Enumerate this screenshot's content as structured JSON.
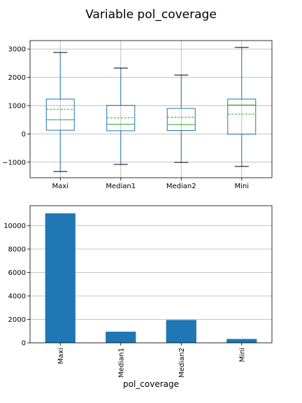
{
  "figure": {
    "title": "Variable pol_coverage"
  },
  "colors": {
    "box": "#1f77b4",
    "median": "#2ca02c",
    "mean": "#2ca02c",
    "bar": "#1f77b4",
    "grid": "#b0b0b0",
    "axis": "#000000"
  },
  "chart_data": [
    {
      "type": "box",
      "categories": [
        "Maxi",
        "Median1",
        "Median2",
        "Mini"
      ],
      "boxes": [
        {
          "name": "Maxi",
          "whisker_low": -1330,
          "q1": 130,
          "median": 500,
          "q3": 1230,
          "whisker_high": 2880,
          "mean": 870
        },
        {
          "name": "Median1",
          "whisker_low": -1080,
          "q1": 110,
          "median": 340,
          "q3": 1010,
          "whisker_high": 2330,
          "mean": 570
        },
        {
          "name": "Median2",
          "whisker_low": -1010,
          "q1": 120,
          "median": 330,
          "q3": 900,
          "whisker_high": 2080,
          "mean": 590
        },
        {
          "name": "Mini",
          "whisker_low": -1150,
          "q1": -10,
          "median": 1020,
          "q3": 1230,
          "whisker_high": 3060,
          "mean": 700
        }
      ],
      "ylim": [
        -1550,
        3300
      ],
      "yticks": [
        -1000,
        0,
        1000,
        2000,
        3000
      ],
      "ytick_labels": [
        "−1000",
        "0",
        "1000",
        "2000",
        "3000"
      ],
      "grid": true,
      "xlabel": "",
      "ylabel": ""
    },
    {
      "type": "bar",
      "categories": [
        "Maxi",
        "Median1",
        "Median2",
        "Mini"
      ],
      "values": [
        11050,
        950,
        1950,
        330
      ],
      "ylim": [
        0,
        11700
      ],
      "yticks": [
        0,
        2000,
        4000,
        6000,
        8000,
        10000
      ],
      "ytick_labels": [
        "0",
        "2000",
        "4000",
        "6000",
        "8000",
        "10000"
      ],
      "grid": true,
      "xlabel": "pol_coverage",
      "ylabel": ""
    }
  ]
}
